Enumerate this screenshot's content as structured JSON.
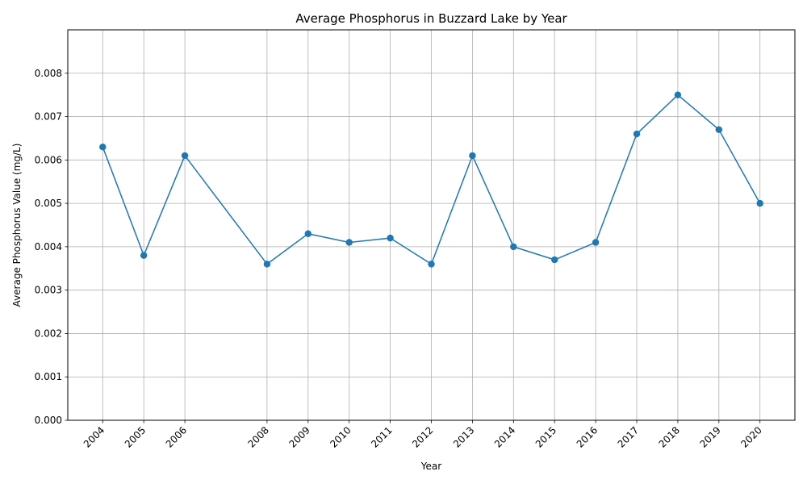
{
  "chart_data": {
    "type": "line",
    "title": "Average Phosphorus in Buzzard Lake by Year",
    "xlabel": "Year",
    "ylabel": "Average Phosphorus Value (mg/L)",
    "x": [
      2004,
      2005,
      2006,
      2008,
      2009,
      2010,
      2011,
      2012,
      2013,
      2014,
      2015,
      2016,
      2017,
      2018,
      2019,
      2020
    ],
    "series": [
      {
        "values": [
          0.0063,
          0.0038,
          0.0061,
          0.0036,
          0.0043,
          0.0041,
          0.0042,
          0.0036,
          0.0061,
          0.004,
          0.0037,
          0.0041,
          0.0066,
          0.0075,
          0.0067,
          0.005
        ]
      }
    ],
    "xlim": [
      2003.15,
      2020.85
    ],
    "ylim": [
      0,
      0.009
    ],
    "yticks": [
      "0.000",
      "0.001",
      "0.002",
      "0.003",
      "0.004",
      "0.005",
      "0.006",
      "0.007",
      "0.008"
    ],
    "xticks": [
      "2004",
      "2005",
      "2006",
      "2008",
      "2009",
      "2010",
      "2011",
      "2012",
      "2013",
      "2014",
      "2015",
      "2016",
      "2017",
      "2018",
      "2019",
      "2020"
    ],
    "grid": true,
    "legend": "none",
    "colors": {
      "line": "#1f77b4",
      "grid": "#b0b0b0",
      "axis": "#000000"
    }
  }
}
